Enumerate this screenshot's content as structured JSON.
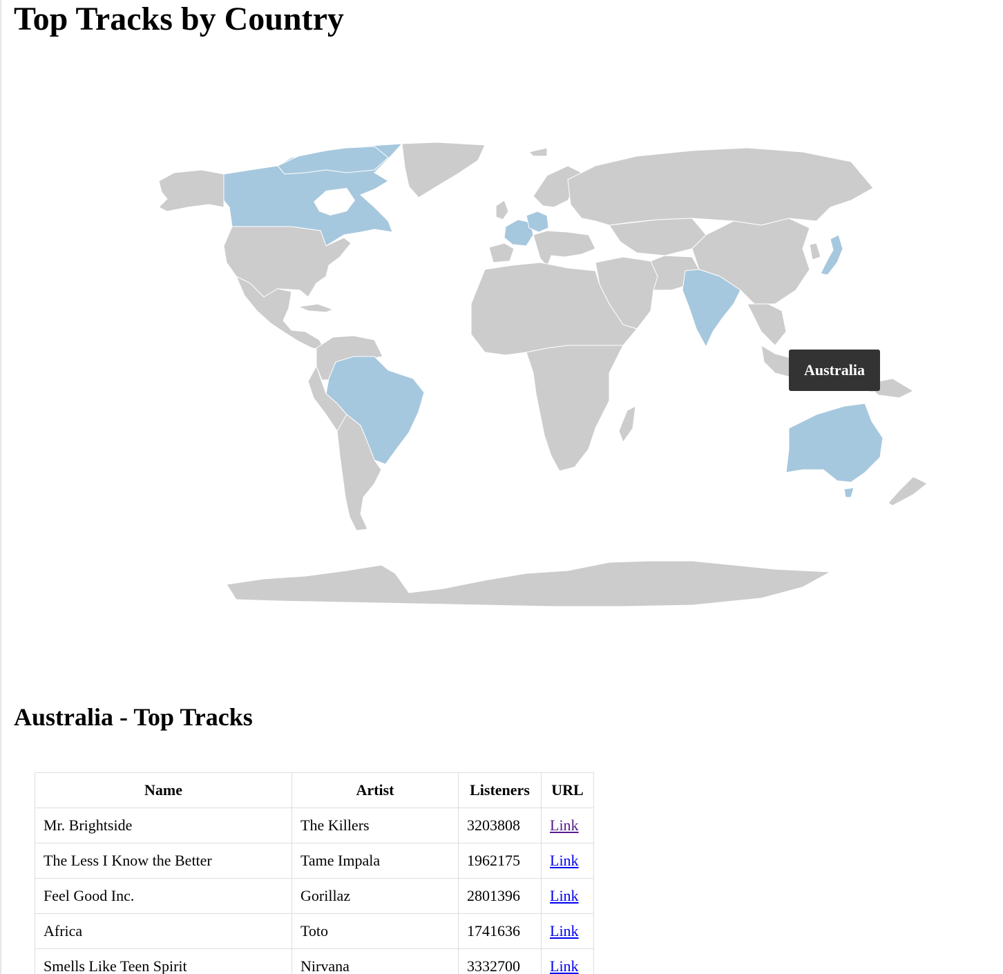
{
  "page": {
    "title": "Top Tracks by Country"
  },
  "map": {
    "colors": {
      "default_land": "#cccccc",
      "highlighted_country": "#a6c8de",
      "border": "#ffffff"
    },
    "highlighted_countries": [
      "Canada",
      "France",
      "Germany",
      "Japan",
      "India",
      "Brazil",
      "Australia"
    ],
    "tooltip": {
      "label": "Australia"
    }
  },
  "selection": {
    "heading": "Australia - Top Tracks"
  },
  "table": {
    "headers": [
      "Name",
      "Artist",
      "Listeners",
      "URL"
    ],
    "rows": [
      {
        "name": "Mr. Brightside",
        "artist": "The Killers",
        "listeners": "3203808",
        "url_label": "Link"
      },
      {
        "name": "The Less I Know the Better",
        "artist": "Tame Impala",
        "listeners": "1962175",
        "url_label": "Link"
      },
      {
        "name": "Feel Good Inc.",
        "artist": "Gorillaz",
        "listeners": "2801396",
        "url_label": "Link"
      },
      {
        "name": "Africa",
        "artist": "Toto",
        "listeners": "1741636",
        "url_label": "Link"
      },
      {
        "name": "Smells Like Teen Spirit",
        "artist": "Nirvana",
        "listeners": "3332700",
        "url_label": "Link"
      }
    ]
  }
}
